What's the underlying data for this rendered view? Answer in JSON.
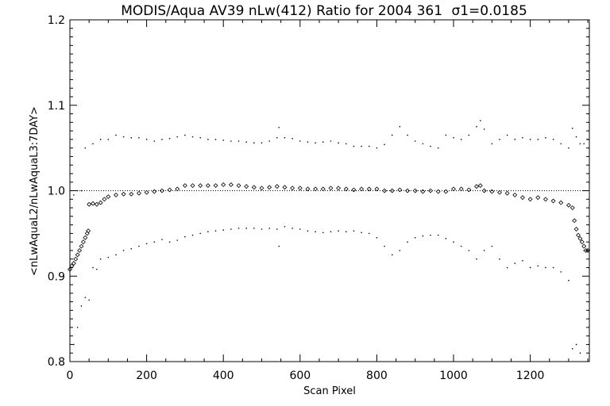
{
  "chart_data": {
    "type": "scatter",
    "title": "MODIS/Aqua AV39 nLw(412) Ratio for 2004 361",
    "sigma_label": "σ1=0.0185",
    "xlabel": "Scan Pixel",
    "ylabel": "<nLwAquaL2/nLwAquaL3:7DAY>",
    "xlim": [
      0,
      1354
    ],
    "ylim": [
      0.8,
      1.2
    ],
    "x_ticks": [
      "0",
      "200",
      "400",
      "600",
      "800",
      "1000",
      "1200"
    ],
    "y_ticks": [
      "0.8",
      "0.9",
      "1.0",
      "1.1",
      "1.2"
    ],
    "reference_line": 1.0,
    "grid": false,
    "legend": "none",
    "series": [
      {
        "role": "mean ratio",
        "marker": "diamond",
        "points": [
          [
            0,
            0.908
          ],
          [
            5,
            0.912
          ],
          [
            10,
            0.915
          ],
          [
            15,
            0.92
          ],
          [
            20,
            0.925
          ],
          [
            25,
            0.93
          ],
          [
            30,
            0.935
          ],
          [
            35,
            0.94
          ],
          [
            40,
            0.945
          ],
          [
            45,
            0.95
          ],
          [
            48,
            0.953
          ],
          [
            50,
            0.984
          ],
          [
            60,
            0.985
          ],
          [
            70,
            0.984
          ],
          [
            80,
            0.986
          ],
          [
            90,
            0.99
          ],
          [
            100,
            0.993
          ],
          [
            120,
            0.995
          ],
          [
            140,
            0.996
          ],
          [
            160,
            0.996
          ],
          [
            180,
            0.997
          ],
          [
            200,
            0.998
          ],
          [
            220,
            0.999
          ],
          [
            240,
            1.0
          ],
          [
            260,
            1.001
          ],
          [
            280,
            1.002
          ],
          [
            300,
            1.006
          ],
          [
            320,
            1.006
          ],
          [
            340,
            1.006
          ],
          [
            360,
            1.006
          ],
          [
            380,
            1.006
          ],
          [
            400,
            1.007
          ],
          [
            420,
            1.007
          ],
          [
            440,
            1.006
          ],
          [
            460,
            1.005
          ],
          [
            480,
            1.004
          ],
          [
            500,
            1.003
          ],
          [
            520,
            1.004
          ],
          [
            540,
            1.005
          ],
          [
            560,
            1.004
          ],
          [
            580,
            1.003
          ],
          [
            600,
            1.003
          ],
          [
            620,
            1.002
          ],
          [
            640,
            1.002
          ],
          [
            660,
            1.002
          ],
          [
            680,
            1.003
          ],
          [
            700,
            1.003
          ],
          [
            720,
            1.002
          ],
          [
            740,
            1.001
          ],
          [
            760,
            1.002
          ],
          [
            780,
            1.002
          ],
          [
            800,
            1.002
          ],
          [
            820,
            1.0
          ],
          [
            840,
            1.0
          ],
          [
            860,
            1.001
          ],
          [
            880,
            1.0
          ],
          [
            900,
            1.0
          ],
          [
            920,
            0.999
          ],
          [
            940,
            1.0
          ],
          [
            960,
            0.999
          ],
          [
            980,
            0.999
          ],
          [
            1000,
            1.002
          ],
          [
            1020,
            1.002
          ],
          [
            1040,
            1.001
          ],
          [
            1060,
            1.005
          ],
          [
            1070,
            1.006
          ],
          [
            1080,
            1.0
          ],
          [
            1100,
            0.999
          ],
          [
            1120,
            0.998
          ],
          [
            1140,
            0.997
          ],
          [
            1160,
            0.995
          ],
          [
            1180,
            0.992
          ],
          [
            1200,
            0.99
          ],
          [
            1220,
            0.992
          ],
          [
            1240,
            0.99
          ],
          [
            1260,
            0.988
          ],
          [
            1280,
            0.986
          ],
          [
            1300,
            0.983
          ],
          [
            1310,
            0.98
          ],
          [
            1315,
            0.965
          ],
          [
            1320,
            0.955
          ],
          [
            1325,
            0.948
          ],
          [
            1330,
            0.944
          ],
          [
            1335,
            0.94
          ],
          [
            1340,
            0.935
          ],
          [
            1345,
            0.93
          ],
          [
            1350,
            0.93
          ]
        ]
      },
      {
        "role": "upper sigma bound",
        "marker": "dot",
        "points": [
          [
            10,
            0.995
          ],
          [
            20,
            1.0
          ],
          [
            30,
            1.0
          ],
          [
            40,
            1.05
          ],
          [
            60,
            1.055
          ],
          [
            80,
            1.06
          ],
          [
            100,
            1.06
          ],
          [
            120,
            1.065
          ],
          [
            140,
            1.063
          ],
          [
            160,
            1.062
          ],
          [
            180,
            1.062
          ],
          [
            200,
            1.06
          ],
          [
            220,
            1.058
          ],
          [
            240,
            1.06
          ],
          [
            260,
            1.061
          ],
          [
            280,
            1.063
          ],
          [
            300,
            1.065
          ],
          [
            320,
            1.063
          ],
          [
            340,
            1.062
          ],
          [
            360,
            1.06
          ],
          [
            380,
            1.06
          ],
          [
            400,
            1.059
          ],
          [
            420,
            1.058
          ],
          [
            440,
            1.058
          ],
          [
            460,
            1.057
          ],
          [
            480,
            1.056
          ],
          [
            500,
            1.056
          ],
          [
            520,
            1.058
          ],
          [
            540,
            1.062
          ],
          [
            545,
            1.074
          ],
          [
            560,
            1.062
          ],
          [
            580,
            1.061
          ],
          [
            600,
            1.058
          ],
          [
            620,
            1.057
          ],
          [
            640,
            1.056
          ],
          [
            660,
            1.057
          ],
          [
            680,
            1.058
          ],
          [
            700,
            1.056
          ],
          [
            720,
            1.055
          ],
          [
            740,
            1.052
          ],
          [
            760,
            1.052
          ],
          [
            780,
            1.052
          ],
          [
            800,
            1.05
          ],
          [
            820,
            1.054
          ],
          [
            840,
            1.065
          ],
          [
            860,
            1.075
          ],
          [
            880,
            1.065
          ],
          [
            900,
            1.058
          ],
          [
            920,
            1.055
          ],
          [
            940,
            1.052
          ],
          [
            960,
            1.05
          ],
          [
            980,
            1.065
          ],
          [
            1000,
            1.062
          ],
          [
            1020,
            1.06
          ],
          [
            1040,
            1.065
          ],
          [
            1060,
            1.075
          ],
          [
            1070,
            1.082
          ],
          [
            1080,
            1.072
          ],
          [
            1100,
            1.055
          ],
          [
            1120,
            1.06
          ],
          [
            1140,
            1.065
          ],
          [
            1160,
            1.06
          ],
          [
            1180,
            1.062
          ],
          [
            1200,
            1.06
          ],
          [
            1220,
            1.06
          ],
          [
            1240,
            1.062
          ],
          [
            1260,
            1.06
          ],
          [
            1280,
            1.055
          ],
          [
            1300,
            1.05
          ],
          [
            1310,
            1.073
          ],
          [
            1320,
            1.063
          ],
          [
            1330,
            1.055
          ],
          [
            1340,
            1.055
          ],
          [
            1350,
            1.06
          ]
        ]
      },
      {
        "role": "lower sigma bound",
        "marker": "dot",
        "points": [
          [
            10,
            0.82
          ],
          [
            20,
            0.84
          ],
          [
            30,
            0.865
          ],
          [
            40,
            0.875
          ],
          [
            50,
            0.872
          ],
          [
            60,
            0.91
          ],
          [
            70,
            0.908
          ],
          [
            80,
            0.92
          ],
          [
            100,
            0.922
          ],
          [
            120,
            0.925
          ],
          [
            140,
            0.93
          ],
          [
            160,
            0.932
          ],
          [
            180,
            0.935
          ],
          [
            200,
            0.938
          ],
          [
            220,
            0.94
          ],
          [
            240,
            0.943
          ],
          [
            260,
            0.94
          ],
          [
            280,
            0.942
          ],
          [
            300,
            0.946
          ],
          [
            320,
            0.948
          ],
          [
            340,
            0.95
          ],
          [
            360,
            0.952
          ],
          [
            380,
            0.953
          ],
          [
            400,
            0.954
          ],
          [
            420,
            0.955
          ],
          [
            440,
            0.956
          ],
          [
            460,
            0.956
          ],
          [
            480,
            0.956
          ],
          [
            500,
            0.955
          ],
          [
            520,
            0.956
          ],
          [
            540,
            0.955
          ],
          [
            545,
            0.935
          ],
          [
            560,
            0.958
          ],
          [
            580,
            0.956
          ],
          [
            600,
            0.955
          ],
          [
            620,
            0.953
          ],
          [
            640,
            0.952
          ],
          [
            660,
            0.951
          ],
          [
            680,
            0.952
          ],
          [
            700,
            0.953
          ],
          [
            720,
            0.952
          ],
          [
            740,
            0.953
          ],
          [
            760,
            0.951
          ],
          [
            780,
            0.95
          ],
          [
            800,
            0.945
          ],
          [
            820,
            0.935
          ],
          [
            840,
            0.925
          ],
          [
            860,
            0.93
          ],
          [
            880,
            0.94
          ],
          [
            900,
            0.945
          ],
          [
            920,
            0.947
          ],
          [
            940,
            0.948
          ],
          [
            960,
            0.948
          ],
          [
            980,
            0.944
          ],
          [
            1000,
            0.94
          ],
          [
            1020,
            0.935
          ],
          [
            1040,
            0.93
          ],
          [
            1060,
            0.92
          ],
          [
            1080,
            0.93
          ],
          [
            1100,
            0.935
          ],
          [
            1120,
            0.92
          ],
          [
            1140,
            0.91
          ],
          [
            1160,
            0.915
          ],
          [
            1180,
            0.918
          ],
          [
            1200,
            0.91
          ],
          [
            1220,
            0.912
          ],
          [
            1240,
            0.91
          ],
          [
            1260,
            0.91
          ],
          [
            1280,
            0.905
          ],
          [
            1300,
            0.895
          ],
          [
            1310,
            0.815
          ],
          [
            1320,
            0.82
          ],
          [
            1330,
            0.81
          ],
          [
            1340,
            0.93
          ],
          [
            1350,
            0.93
          ]
        ]
      }
    ]
  }
}
